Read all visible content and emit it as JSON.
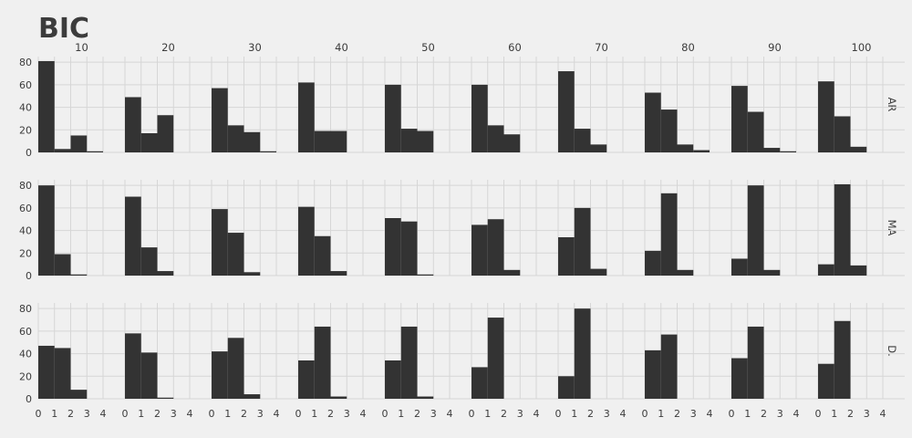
{
  "chart_data": {
    "type": "bar",
    "title": "BIC",
    "facet_cols": [
      "10",
      "20",
      "30",
      "40",
      "50",
      "60",
      "70",
      "80",
      "90",
      "100"
    ],
    "facet_rows": [
      "AR",
      "MA",
      "D."
    ],
    "x_ticks": [
      "0",
      "1",
      "2",
      "3",
      "4"
    ],
    "y_ticks": [
      "0",
      "20",
      "40",
      "60",
      "80"
    ],
    "xlim": [
      0,
      4
    ],
    "ylim": [
      0,
      85
    ],
    "bin_edges": [
      0,
      1,
      2,
      3,
      4
    ],
    "grid": true,
    "values": [
      [
        [
          81,
          3,
          15,
          1
        ],
        [
          49,
          17,
          33,
          0
        ],
        [
          57,
          24,
          18,
          1
        ],
        [
          62,
          19,
          19,
          0
        ],
        [
          60,
          21,
          19,
          0
        ],
        [
          60,
          24,
          16,
          0
        ],
        [
          72,
          21,
          7,
          0
        ],
        [
          53,
          38,
          7,
          2
        ],
        [
          59,
          36,
          4,
          1
        ],
        [
          63,
          32,
          5,
          0
        ]
      ],
      [
        [
          80,
          19,
          1,
          0
        ],
        [
          70,
          25,
          4,
          0
        ],
        [
          59,
          38,
          3,
          0
        ],
        [
          61,
          35,
          4,
          0
        ],
        [
          51,
          48,
          1,
          0
        ],
        [
          45,
          50,
          5,
          0
        ],
        [
          34,
          60,
          6,
          0
        ],
        [
          22,
          73,
          5,
          0
        ],
        [
          15,
          80,
          5,
          0
        ],
        [
          10,
          81,
          9,
          0
        ]
      ],
      [
        [
          47,
          45,
          8,
          0
        ],
        [
          58,
          41,
          1,
          0
        ],
        [
          42,
          54,
          4,
          0
        ],
        [
          34,
          64,
          2,
          0
        ],
        [
          34,
          64,
          2,
          0
        ],
        [
          28,
          72,
          0,
          0
        ],
        [
          20,
          80,
          0,
          0
        ],
        [
          43,
          57,
          0,
          0
        ],
        [
          36,
          64,
          0,
          0
        ],
        [
          31,
          69,
          0,
          0
        ]
      ]
    ]
  }
}
